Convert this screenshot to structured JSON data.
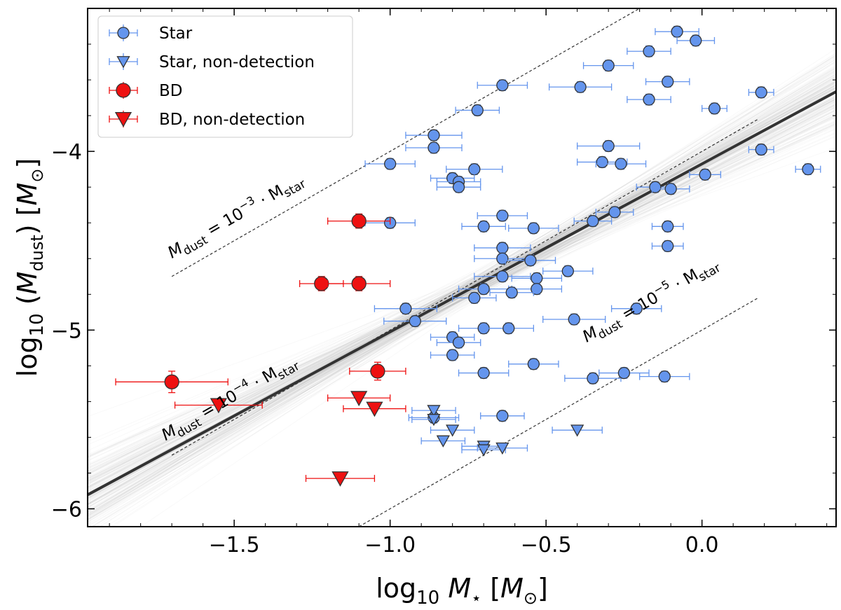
{
  "chart_data": {
    "type": "scatter",
    "xlabel_parts": {
      "base": "log",
      "sub": "10",
      "var": "M",
      "var_sub": "⋆",
      "unit_open": "[",
      "unit_var": "M",
      "unit_sub": "⊙",
      "unit_close": "]"
    },
    "ylabel_parts": {
      "base": "log",
      "sub": "10",
      "paren_open": "(",
      "var": "M",
      "var_sub": "dust",
      "paren_close": ")",
      "unit_open": "[",
      "unit_var": "M",
      "unit_sub": "⊙",
      "unit_close": "]"
    },
    "xlim": [
      -1.97,
      0.43
    ],
    "ylim": [
      -6.1,
      -3.2
    ],
    "x_ticks": [
      -1.5,
      -1.0,
      -0.5,
      0.0
    ],
    "x_tick_labels": [
      "−1.5",
      "−1.0",
      "−0.5",
      "0.0"
    ],
    "y_ticks": [
      -6,
      -5,
      -4
    ],
    "y_tick_labels": [
      "−6",
      "−5",
      "−4"
    ],
    "legend_position": "top-left",
    "legend": [
      {
        "label": "Star",
        "marker": "circle",
        "color": "#6495ED"
      },
      {
        "label": "Star, non-detection",
        "marker": "triangle-down",
        "color": "#6495ED"
      },
      {
        "label": "BD",
        "marker": "circle",
        "color": "#EE1111"
      },
      {
        "label": "BD, non-detection",
        "marker": "triangle-down",
        "color": "#EE1111"
      }
    ],
    "colors": {
      "star": "#6495ED",
      "bd": "#EE1111",
      "fit": "#333333",
      "samples": "#9a9a9a",
      "ref_line": "#333333"
    },
    "reference_lines": [
      {
        "label_prefix": "M",
        "label_sub": "dust",
        "label_mid": " = 10",
        "label_exp": "−3",
        "label_suffix": " · M",
        "label_sub2": "star",
        "intercept": -3,
        "x_range": [
          -1.7,
          -0.12
        ],
        "label_x": -1.7,
        "label_y": -4.6
      },
      {
        "label_prefix": "M",
        "label_sub": "dust",
        "label_mid": " = 10",
        "label_exp": "−4",
        "label_suffix": " · M",
        "label_sub2": "star",
        "intercept": -4,
        "x_range": [
          -1.7,
          0.18
        ],
        "label_x": -1.72,
        "label_y": -5.62
      },
      {
        "label_prefix": "M",
        "label_sub": "dust",
        "label_mid": " = 10",
        "label_exp": "−5",
        "label_suffix": " · M",
        "label_sub2": "star",
        "intercept": -5,
        "x_range": [
          -1.1,
          0.18
        ],
        "label_x": -0.37,
        "label_y": -5.07
      }
    ],
    "fit": {
      "slope": 0.94,
      "intercept": -4.07
    },
    "series": [
      {
        "name": "Star",
        "marker": "circle",
        "points": [
          {
            "x": -0.08,
            "y": -3.33,
            "xerr": 0.07,
            "yerr": 0.03
          },
          {
            "x": -0.02,
            "y": -3.38,
            "xerr": 0.06,
            "yerr": 0.03
          },
          {
            "x": -0.17,
            "y": -3.44,
            "xerr": 0.07,
            "yerr": 0.03
          },
          {
            "x": -0.3,
            "y": -3.52,
            "xerr": 0.08,
            "yerr": 0.03
          },
          {
            "x": -0.64,
            "y": -3.63,
            "xerr": 0.08,
            "yerr": 0.03
          },
          {
            "x": -0.39,
            "y": -3.64,
            "xerr": 0.1,
            "yerr": 0.03
          },
          {
            "x": -0.11,
            "y": -3.61,
            "xerr": 0.07,
            "yerr": 0.03
          },
          {
            "x": -0.17,
            "y": -3.71,
            "xerr": 0.07,
            "yerr": 0.03
          },
          {
            "x": -0.72,
            "y": -3.77,
            "xerr": 0.07,
            "yerr": 0.03
          },
          {
            "x": 0.04,
            "y": -3.76,
            "xerr": 0.04,
            "yerr": 0.03
          },
          {
            "x": 0.19,
            "y": -3.67,
            "xerr": 0.04,
            "yerr": 0.03
          },
          {
            "x": -0.86,
            "y": -3.91,
            "xerr": 0.09,
            "yerr": 0.03
          },
          {
            "x": -0.86,
            "y": -3.98,
            "xerr": 0.09,
            "yerr": 0.03
          },
          {
            "x": -1.0,
            "y": -4.07,
            "xerr": 0.08,
            "yerr": 0.03
          },
          {
            "x": -0.73,
            "y": -4.1,
            "xerr": 0.09,
            "yerr": 0.03
          },
          {
            "x": -0.8,
            "y": -4.15,
            "xerr": 0.07,
            "yerr": 0.03
          },
          {
            "x": -0.78,
            "y": -4.17,
            "xerr": 0.07,
            "yerr": 0.03
          },
          {
            "x": -0.78,
            "y": -4.2,
            "xerr": 0.07,
            "yerr": 0.03
          },
          {
            "x": -0.3,
            "y": -3.97,
            "xerr": 0.1,
            "yerr": 0.03
          },
          {
            "x": -0.32,
            "y": -4.06,
            "xerr": 0.08,
            "yerr": 0.03
          },
          {
            "x": -0.26,
            "y": -4.07,
            "xerr": 0.08,
            "yerr": 0.03
          },
          {
            "x": 0.19,
            "y": -3.99,
            "xerr": 0.04,
            "yerr": 0.03
          },
          {
            "x": 0.34,
            "y": -4.1,
            "xerr": 0.04,
            "yerr": 0.03
          },
          {
            "x": 0.01,
            "y": -4.13,
            "xerr": 0.05,
            "yerr": 0.03
          },
          {
            "x": -0.15,
            "y": -4.2,
            "xerr": 0.06,
            "yerr": 0.03
          },
          {
            "x": -0.1,
            "y": -4.21,
            "xerr": 0.06,
            "yerr": 0.03
          },
          {
            "x": -1.0,
            "y": -4.4,
            "xerr": 0.08,
            "yerr": 0.03
          },
          {
            "x": -0.64,
            "y": -4.36,
            "xerr": 0.08,
            "yerr": 0.03
          },
          {
            "x": -0.7,
            "y": -4.42,
            "xerr": 0.07,
            "yerr": 0.03
          },
          {
            "x": -0.54,
            "y": -4.43,
            "xerr": 0.08,
            "yerr": 0.03
          },
          {
            "x": -0.35,
            "y": -4.39,
            "xerr": 0.06,
            "yerr": 0.03
          },
          {
            "x": -0.28,
            "y": -4.34,
            "xerr": 0.06,
            "yerr": 0.03
          },
          {
            "x": -0.11,
            "y": -4.42,
            "xerr": 0.05,
            "yerr": 0.03
          },
          {
            "x": -0.11,
            "y": -4.53,
            "xerr": 0.05,
            "yerr": 0.03
          },
          {
            "x": -0.64,
            "y": -4.54,
            "xerr": 0.09,
            "yerr": 0.03
          },
          {
            "x": -0.64,
            "y": -4.6,
            "xerr": 0.09,
            "yerr": 0.03
          },
          {
            "x": -0.55,
            "y": -4.61,
            "xerr": 0.08,
            "yerr": 0.03
          },
          {
            "x": -0.43,
            "y": -4.67,
            "xerr": 0.08,
            "yerr": 0.03
          },
          {
            "x": -0.64,
            "y": -4.7,
            "xerr": 0.09,
            "yerr": 0.03
          },
          {
            "x": -0.53,
            "y": -4.71,
            "xerr": 0.08,
            "yerr": 0.03
          },
          {
            "x": -0.53,
            "y": -4.77,
            "xerr": 0.08,
            "yerr": 0.03
          },
          {
            "x": -0.7,
            "y": -4.77,
            "xerr": 0.08,
            "yerr": 0.03
          },
          {
            "x": -0.73,
            "y": -4.82,
            "xerr": 0.07,
            "yerr": 0.03
          },
          {
            "x": -0.61,
            "y": -4.79,
            "xerr": 0.07,
            "yerr": 0.03
          },
          {
            "x": -0.95,
            "y": -4.88,
            "xerr": 0.1,
            "yerr": 0.03
          },
          {
            "x": -0.92,
            "y": -4.95,
            "xerr": 0.1,
            "yerr": 0.03
          },
          {
            "x": -0.7,
            "y": -4.99,
            "xerr": 0.08,
            "yerr": 0.03
          },
          {
            "x": -0.62,
            "y": -4.99,
            "xerr": 0.08,
            "yerr": 0.03
          },
          {
            "x": -0.41,
            "y": -4.94,
            "xerr": 0.1,
            "yerr": 0.03
          },
          {
            "x": -0.21,
            "y": -4.88,
            "xerr": 0.08,
            "yerr": 0.03
          },
          {
            "x": -0.8,
            "y": -5.04,
            "xerr": 0.07,
            "yerr": 0.03
          },
          {
            "x": -0.78,
            "y": -5.07,
            "xerr": 0.07,
            "yerr": 0.03
          },
          {
            "x": -0.8,
            "y": -5.14,
            "xerr": 0.07,
            "yerr": 0.03
          },
          {
            "x": -0.54,
            "y": -5.19,
            "xerr": 0.08,
            "yerr": 0.03
          },
          {
            "x": -0.7,
            "y": -5.24,
            "xerr": 0.08,
            "yerr": 0.03
          },
          {
            "x": -0.35,
            "y": -5.27,
            "xerr": 0.09,
            "yerr": 0.03
          },
          {
            "x": -0.25,
            "y": -5.24,
            "xerr": 0.08,
            "yerr": 0.03
          },
          {
            "x": -0.12,
            "y": -5.26,
            "xerr": 0.08,
            "yerr": 0.03
          },
          {
            "x": -0.86,
            "y": -5.49,
            "xerr": 0.08,
            "yerr": 0.03
          },
          {
            "x": -0.64,
            "y": -5.48,
            "xerr": 0.07,
            "yerr": 0.03
          }
        ]
      },
      {
        "name": "Star, non-detection",
        "marker": "triangle-down",
        "points": [
          {
            "x": -0.86,
            "y": -5.45,
            "xerr": 0.07
          },
          {
            "x": -0.86,
            "y": -5.5,
            "xerr": 0.07
          },
          {
            "x": -0.8,
            "y": -5.56,
            "xerr": 0.07
          },
          {
            "x": -0.83,
            "y": -5.62,
            "xerr": 0.07
          },
          {
            "x": -0.7,
            "y": -5.65,
            "xerr": 0.07
          },
          {
            "x": -0.7,
            "y": -5.67,
            "xerr": 0.07
          },
          {
            "x": -0.64,
            "y": -5.66,
            "xerr": 0.08
          },
          {
            "x": -0.4,
            "y": -5.56,
            "xerr": 0.08
          }
        ]
      },
      {
        "name": "BD",
        "marker": "circle",
        "points": [
          {
            "x": -1.1,
            "y": -4.39,
            "xerr": 0.1,
            "yerr": 0.04
          },
          {
            "x": -1.22,
            "y": -4.74,
            "xerr": 0.07,
            "yerr": 0.04
          },
          {
            "x": -1.1,
            "y": -4.74,
            "xerr": 0.1,
            "yerr": 0.04
          },
          {
            "x": -1.04,
            "y": -5.23,
            "xerr": 0.09,
            "yerr": 0.05
          },
          {
            "x": -1.7,
            "y": -5.29,
            "xerr": 0.18,
            "yerr": 0.06
          }
        ]
      },
      {
        "name": "BD, non-detection",
        "marker": "triangle-down",
        "points": [
          {
            "x": -1.55,
            "y": -5.42,
            "xerr": 0.14
          },
          {
            "x": -1.1,
            "y": -5.38,
            "xerr": 0.1
          },
          {
            "x": -1.05,
            "y": -5.44,
            "xerr": 0.1
          },
          {
            "x": -1.16,
            "y": -5.83,
            "xerr": 0.11
          }
        ]
      }
    ]
  }
}
